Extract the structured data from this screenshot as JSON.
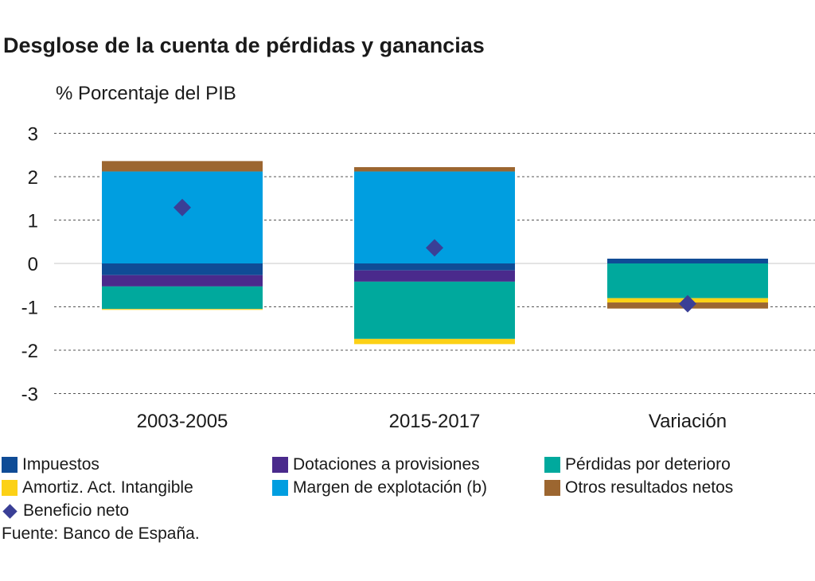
{
  "title": "Desglose de la cuenta de pérdidas y ganancias",
  "units": "% Porcentaje del PIB",
  "source": "Fuente: Banco de España.",
  "colors": {
    "impuestos": "#0f4c96",
    "dotaciones": "#4a2a8c",
    "perdidas": "#00a99d",
    "amortiz": "#fcd116",
    "margen": "#009ee0",
    "otros": "#9c6630",
    "beneficio": "#3a3f96"
  },
  "chart_data": {
    "type": "bar",
    "stacked": true,
    "categories": [
      "2003-2005",
      "2015-2017",
      "Variación"
    ],
    "ylim": [
      -3,
      3
    ],
    "yticks": [
      3,
      2,
      1,
      0,
      -1,
      -2,
      -3
    ],
    "grid": true,
    "legend_position": "bottom",
    "series": [
      {
        "name": "Impuestos",
        "key": "impuestos",
        "values": [
          -0.27,
          -0.16,
          0.11
        ]
      },
      {
        "name": "Dotaciones a provisiones",
        "key": "dotaciones",
        "values": [
          -0.26,
          -0.26,
          0.0
        ]
      },
      {
        "name": "Pérdidas por deterioro",
        "key": "perdidas",
        "values": [
          -0.52,
          -1.32,
          -0.8
        ]
      },
      {
        "name": "Amortiz. Act. Intangible",
        "key": "amortiz",
        "values": [
          -0.02,
          -0.12,
          -0.1
        ]
      },
      {
        "name": "Margen de explotación (b)",
        "key": "margen",
        "values": [
          2.12,
          2.12,
          0.0
        ]
      },
      {
        "name": "Otros resultados netos",
        "key": "otros",
        "values": [
          0.24,
          0.1,
          -0.14
        ]
      }
    ],
    "markers": {
      "name": "Beneficio neto",
      "key": "beneficio",
      "values": [
        1.29,
        0.36,
        -0.93
      ]
    }
  },
  "legend": [
    {
      "label": "Impuestos",
      "key": "impuestos",
      "shape": "square"
    },
    {
      "label": "Dotaciones a provisiones",
      "key": "dotaciones",
      "shape": "square"
    },
    {
      "label": "Pérdidas por deterioro",
      "key": "perdidas",
      "shape": "square"
    },
    {
      "label": "Amortiz. Act. Intangible",
      "key": "amortiz",
      "shape": "square"
    },
    {
      "label": "Margen de explotación (b)",
      "key": "margen",
      "shape": "square"
    },
    {
      "label": "Otros resultados netos",
      "key": "otros",
      "shape": "square"
    },
    {
      "label": "Beneficio neto",
      "key": "beneficio",
      "shape": "diamond"
    }
  ]
}
